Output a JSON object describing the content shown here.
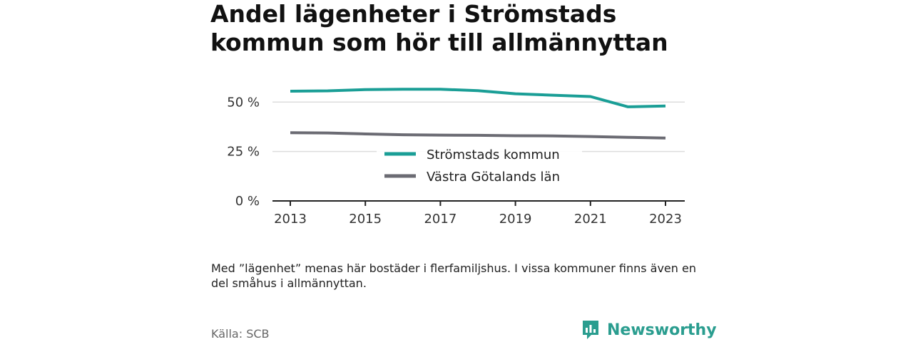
{
  "title": "Andel lägenheter i Strömstads kommun som hör till allmännyttan",
  "note": "Med ”lägenhet” menas här bostäder i flerfamiljshus. I vissa kommuner finns även en del småhus i allmännyttan.",
  "source": "Källa: SCB",
  "brand": {
    "name": "Newsworthy",
    "icon": "bar-chart-logo-icon",
    "color": "#2a9d8f"
  },
  "chart_data": {
    "type": "line",
    "x": [
      2013,
      2014,
      2015,
      2016,
      2017,
      2018,
      2019,
      2020,
      2021,
      2022,
      2023
    ],
    "series": [
      {
        "name": "Strömstads kommun",
        "color": "#1a9e96",
        "values": [
          55.5,
          55.7,
          56.3,
          56.5,
          56.5,
          55.8,
          54.2,
          53.5,
          52.8,
          47.6,
          48.0
        ]
      },
      {
        "name": "Västra Götalands län",
        "color": "#6b6b73",
        "values": [
          34.5,
          34.4,
          33.9,
          33.5,
          33.3,
          33.2,
          33.0,
          32.9,
          32.6,
          32.2,
          31.8
        ]
      }
    ],
    "x_ticks": [
      "2013",
      "2015",
      "2017",
      "2019",
      "2021",
      "2023"
    ],
    "y_ticks": [
      "0 %",
      "25 %",
      "50 %"
    ],
    "y_tick_values": [
      0,
      25,
      50
    ],
    "ylim": [
      0,
      62
    ],
    "xlim": [
      2013,
      2023
    ],
    "grid": true,
    "legend_position": "center"
  }
}
